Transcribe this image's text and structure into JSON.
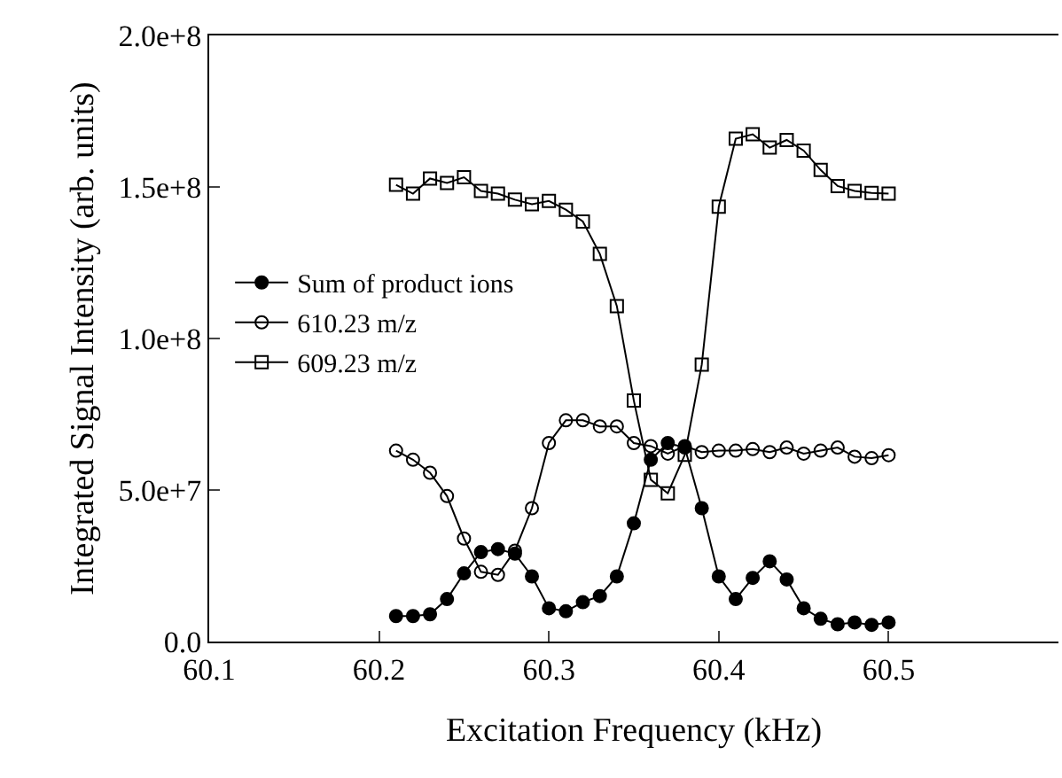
{
  "chart_data": {
    "type": "line",
    "xlabel": "Excitation Frequency (kHz)",
    "ylabel": "Integrated Signal Intensity (arb. units)",
    "x": [
      60.21,
      60.22,
      60.23,
      60.24,
      60.25,
      60.26,
      60.27,
      60.28,
      60.29,
      60.3,
      60.31,
      60.32,
      60.33,
      60.34,
      60.35,
      60.36,
      60.37,
      60.38,
      60.39,
      60.4,
      60.41,
      60.42,
      60.43,
      60.44,
      60.45,
      60.46,
      60.47,
      60.48,
      60.49,
      60.5
    ],
    "series": [
      {
        "name": "Sum of product ions",
        "color": "#000000",
        "marker": "circle",
        "values": [
          8400000.0,
          8400000.0,
          9000000.0,
          14000000.0,
          22500000.0,
          29500000.0,
          30500000.0,
          29000000.0,
          21500000.0,
          11000000.0,
          10000000.0,
          13000000.0,
          15000000.0,
          21500000.0,
          39000000.0,
          60000000.0,
          65500000.0,
          64000000.0,
          44000000.0,
          21500000.0,
          14000000.0,
          21000000.0,
          26500000.0,
          20500000.0,
          11000000.0,
          7500000.0,
          5700000.0,
          6300000.0,
          5500000.0,
          6300000.0
        ]
      },
      {
        "name": "610.23 m/z",
        "color": "#000000",
        "marker": "circle-open",
        "values": [
          63000000.0,
          60000000.0,
          55700000.0,
          48000000.0,
          34000000.0,
          23000000.0,
          22000000.0,
          30000000.0,
          44000000.0,
          65500000.0,
          73000000.0,
          73000000.0,
          71000000.0,
          71000000.0,
          65500000.0,
          64500000.0,
          62000000.0,
          64500000.0,
          62500000.0,
          63000000.0,
          63000000.0,
          63500000.0,
          62500000.0,
          64000000.0,
          62000000.0,
          63000000.0,
          64000000.0,
          61000000.0,
          60500000.0,
          61500000.0
        ]
      },
      {
        "name": "609.23 m/z",
        "color": "#000000",
        "marker": "square-open",
        "values": [
          150700000.0,
          147800000.0,
          152800000.0,
          151300000.0,
          153200000.0,
          148700000.0,
          147800000.0,
          145800000.0,
          144300000.0,
          145400000.0,
          142500000.0,
          138600000.0,
          127900000.0,
          110700000.0,
          79500000.0,
          53400000.0,
          48900000.0,
          61600000.0,
          91400000.0,
          143500000.0,
          165900000.0,
          167400000.0,
          163000000.0,
          165500000.0,
          162000000.0,
          155600000.0,
          150300000.0,
          148700000.0,
          148000000.0,
          147800000.0
        ]
      }
    ],
    "xlim": [
      60.1,
      60.6
    ],
    "xticks": [
      60.1,
      60.2,
      60.3,
      60.4,
      60.5
    ],
    "ylim": [
      0,
      200000000.0
    ],
    "yticks": [
      {
        "value": 0,
        "label": "0.0"
      },
      {
        "value": 50000000.0,
        "label": "5.0e+7"
      },
      {
        "value": 100000000.0,
        "label": "1.0e+8"
      },
      {
        "value": 150000000.0,
        "label": "1.5e+8"
      },
      {
        "value": 200000000.0,
        "label": "2.0e+8"
      }
    ],
    "grid": false,
    "legend": "left",
    "line_style": "solid"
  }
}
